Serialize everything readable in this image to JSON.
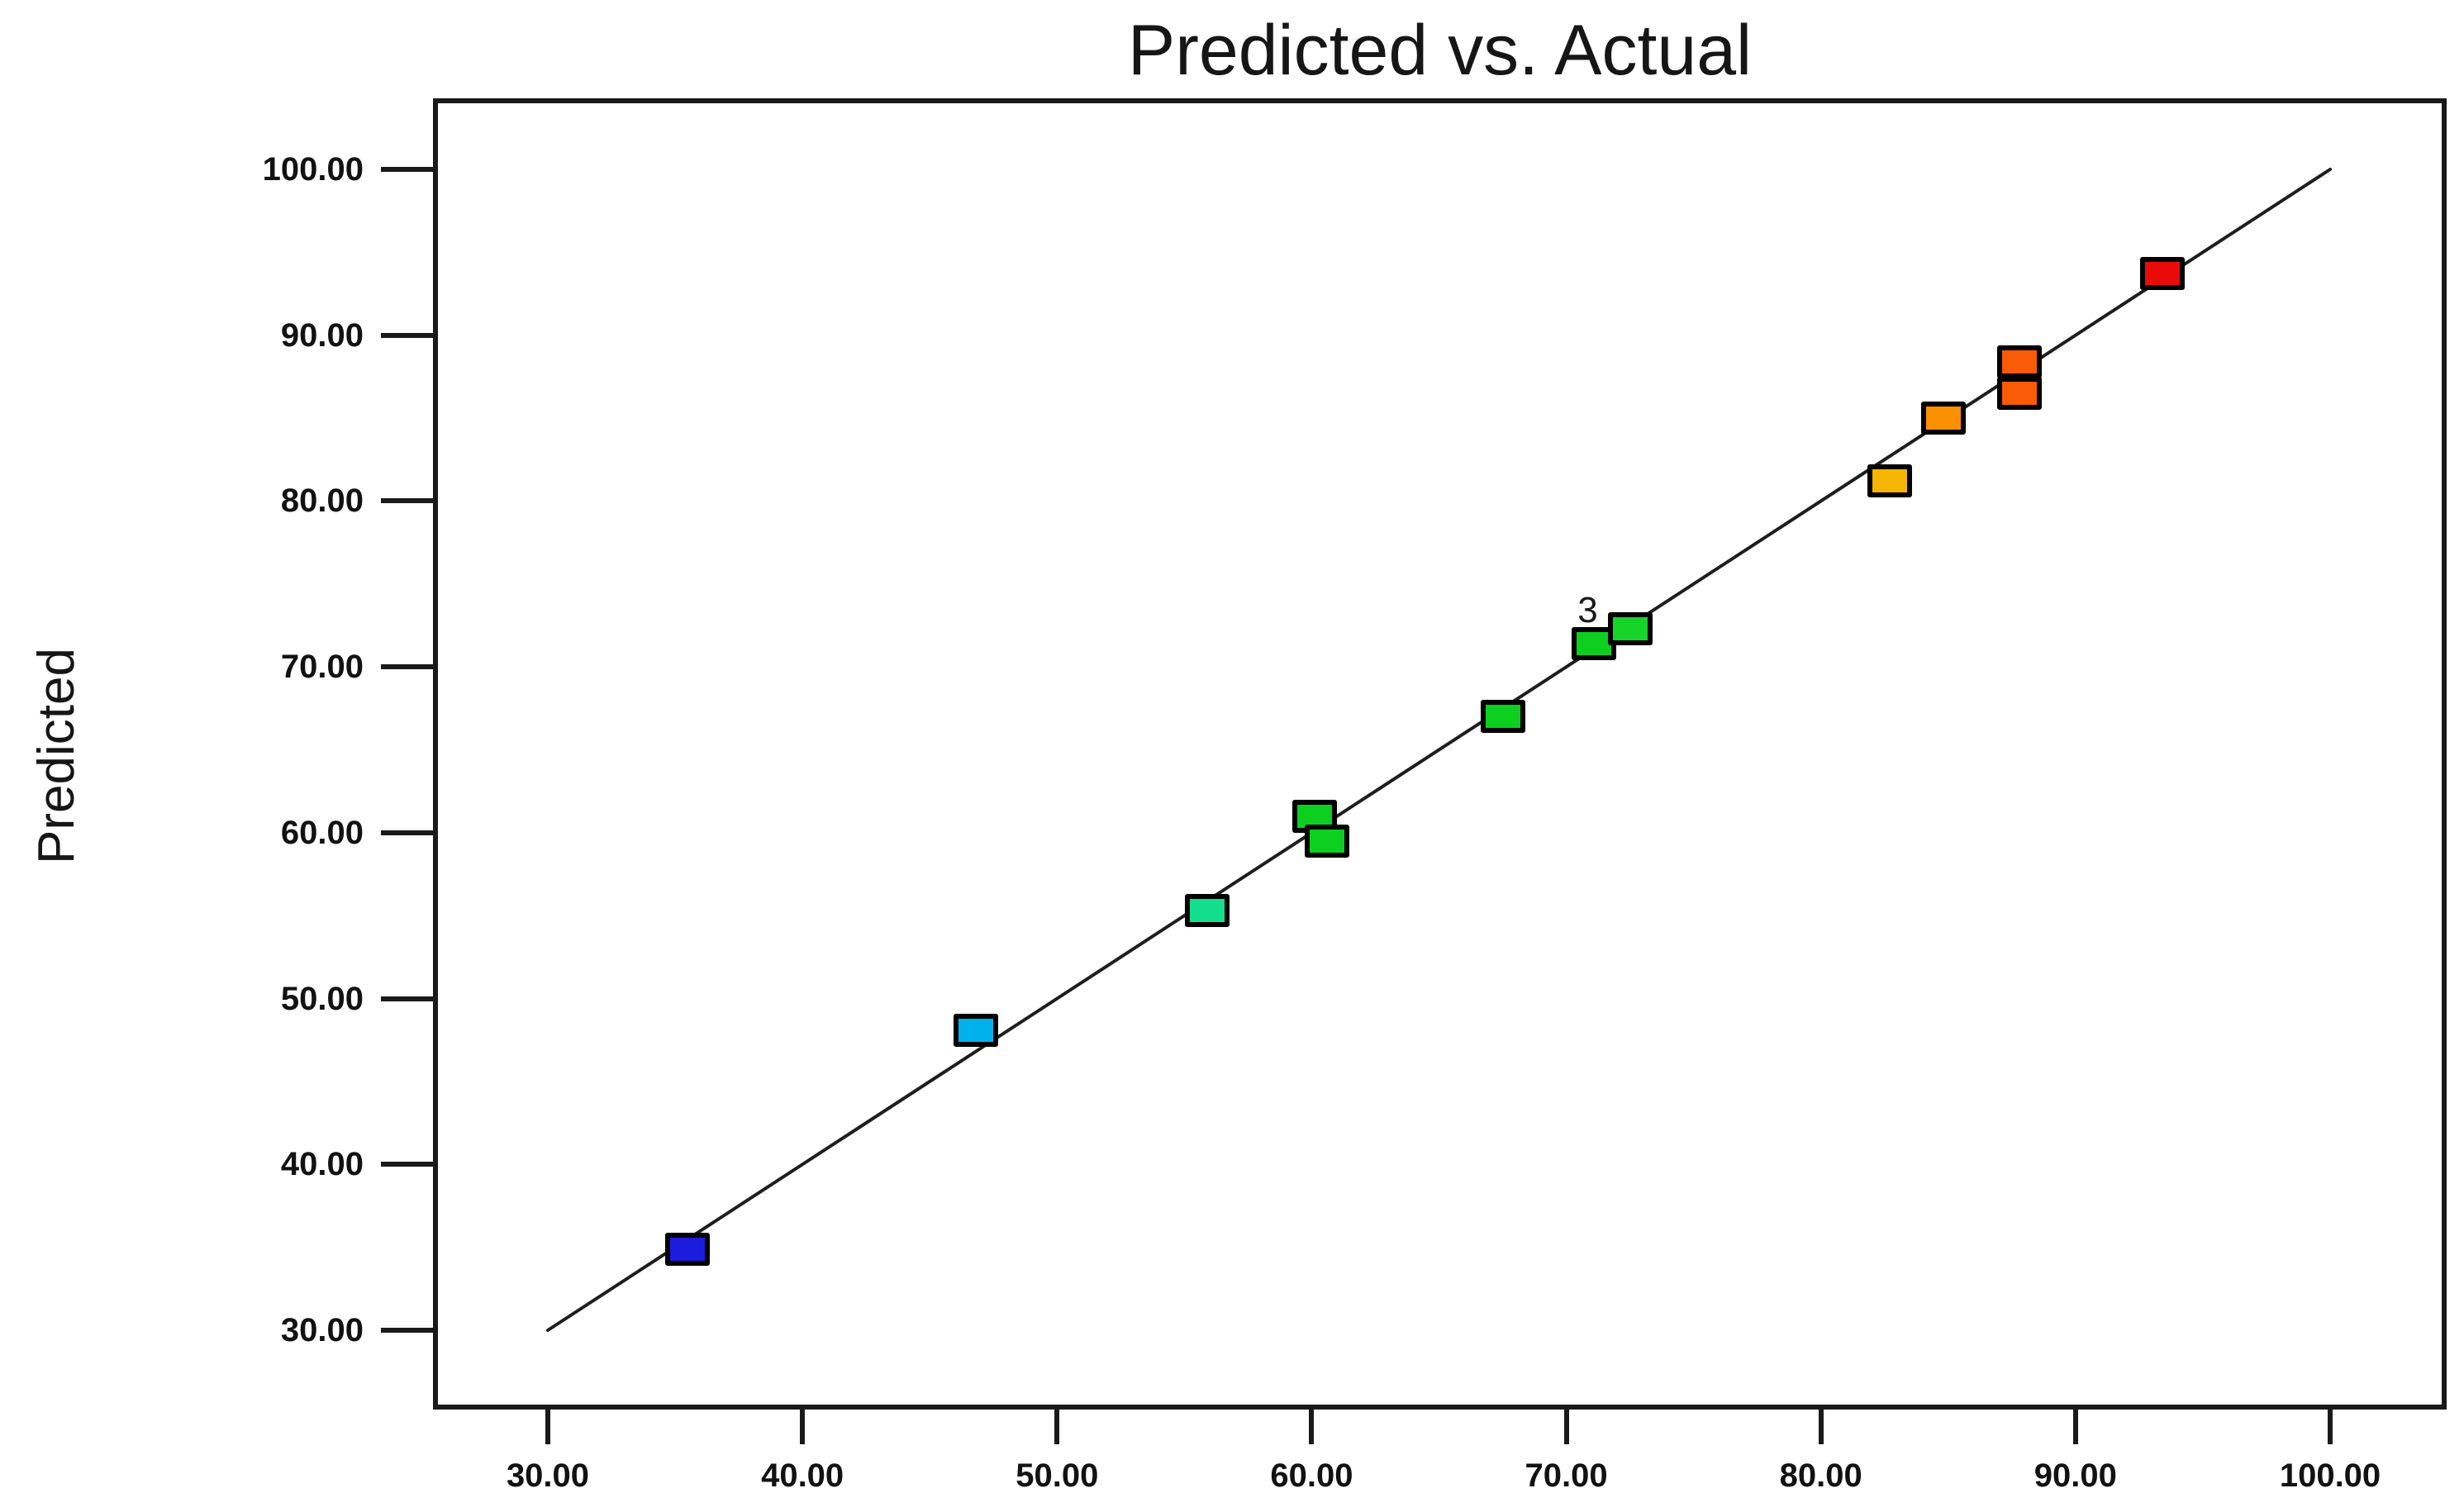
{
  "page": {
    "background_color": "#FFFFFF",
    "frame_color": "#1A1A1A",
    "text_color": "#161616"
  },
  "chart_data": {
    "type": "scatter",
    "title": "Predicted vs. Actual",
    "xlabel": "",
    "ylabel": "Predicted",
    "xlim": [
      30,
      100
    ],
    "ylim": [
      30,
      100
    ],
    "grid": false,
    "legend_position": "none",
    "x_tick_labels": [
      "30.00",
      "40.00",
      "50.00",
      "60.00",
      "70.00",
      "80.00",
      "90.00",
      "100.00"
    ],
    "y_tick_labels": [
      "30.00",
      "40.00",
      "50.00",
      "60.00",
      "70.00",
      "80.00",
      "90.00",
      "100.00"
    ],
    "x_tick_values": [
      30,
      40,
      50,
      60,
      70,
      80,
      90,
      100
    ],
    "y_tick_values": [
      30,
      40,
      50,
      60,
      70,
      80,
      90,
      100
    ],
    "identity_line": {
      "from": [
        30,
        30
      ],
      "to": [
        100,
        100
      ],
      "color": "#1E1E1E"
    },
    "marker_shape": "square",
    "points": [
      {
        "x": 35.5,
        "y": 34.9,
        "color": "#1C1CDF"
      },
      {
        "x": 46.8,
        "y": 48.1,
        "color": "#00B2EC"
      },
      {
        "x": 55.9,
        "y": 55.3,
        "color": "#12DE8E"
      },
      {
        "x": 60.1,
        "y": 61.0,
        "color": "#0CCF1F"
      },
      {
        "x": 60.6,
        "y": 59.5,
        "color": "#0CCF1F"
      },
      {
        "x": 67.5,
        "y": 67.0,
        "color": "#0CCF1F"
      },
      {
        "x": 71.1,
        "y": 71.4,
        "color": "#0CCF1F",
        "count_label": "3"
      },
      {
        "x": 72.5,
        "y": 72.3,
        "color": "#17D42A"
      },
      {
        "x": 82.7,
        "y": 81.2,
        "color": "#F6B500"
      },
      {
        "x": 84.8,
        "y": 85.0,
        "color": "#FB9100"
      },
      {
        "x": 87.8,
        "y": 88.4,
        "color": "#F95B07"
      },
      {
        "x": 87.8,
        "y": 86.5,
        "color": "#F95B07"
      },
      {
        "x": 93.4,
        "y": 93.7,
        "color": "#EA0A0A"
      }
    ]
  }
}
